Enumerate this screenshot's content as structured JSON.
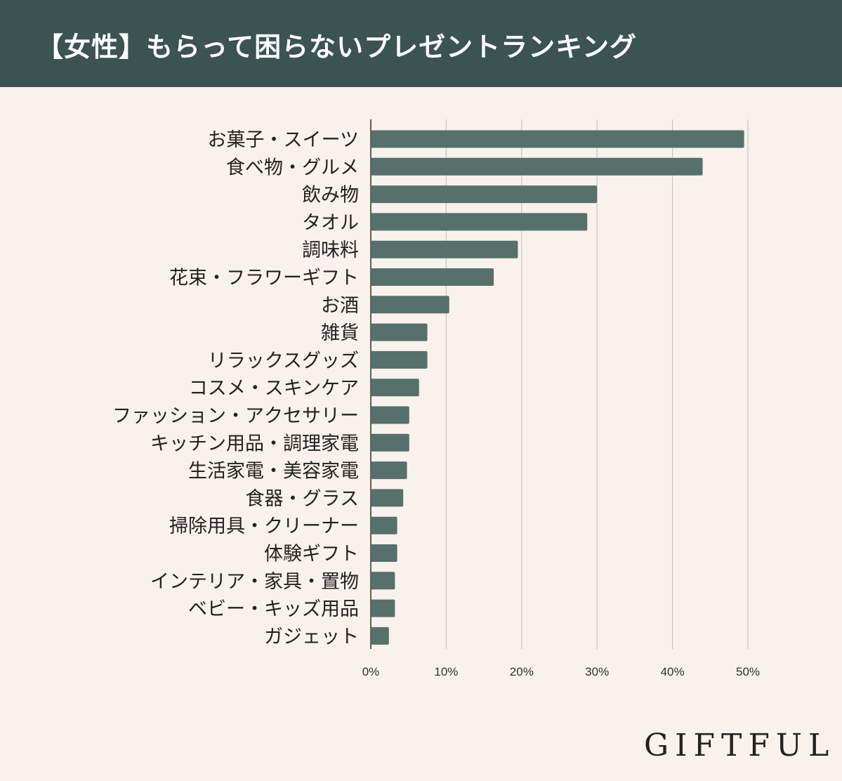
{
  "header": {
    "title": "【女性】もらって困らないプレゼントランキング",
    "background_color": "#3b5351"
  },
  "brand": {
    "logo_text": "GIFTFUL"
  },
  "chart_data": {
    "type": "bar",
    "orientation": "horizontal",
    "categories": [
      "お菓子・スイーツ",
      "食べ物・グルメ",
      "飲み物",
      "タオル",
      "調味料",
      "花束・フラワーギフト",
      "お酒",
      "雑貨",
      "リラックスグッズ",
      "コスメ・スキンケア",
      "ファッション・アクセサリー",
      "キッチン用品・調理家電",
      "生活家電・美容家電",
      "食器・グラス",
      "掃除用具・クリーナー",
      "体験ギフト",
      "インテリア・家具・置物",
      "ベビー・キッズ用品",
      "ガジェット"
    ],
    "values": [
      49.5,
      44,
      30,
      28.7,
      19.5,
      16.3,
      10.4,
      7.5,
      7.5,
      6.4,
      5.1,
      5.1,
      4.8,
      4.3,
      3.5,
      3.5,
      3.2,
      3.2,
      2.4
    ],
    "x_ticks": [
      "0%",
      "10%",
      "20%",
      "30%",
      "40%",
      "50%"
    ],
    "xlim": [
      0,
      50
    ],
    "grid": true,
    "bar_color": "#56706b",
    "grid_color": "#c8c4c1"
  }
}
